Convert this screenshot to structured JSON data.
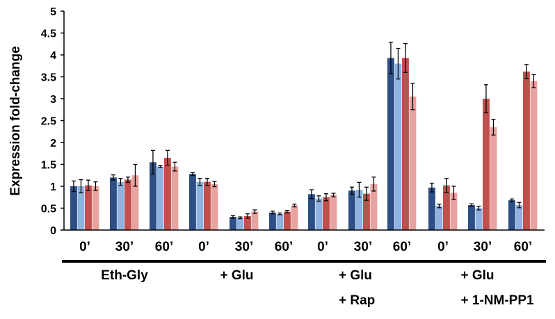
{
  "chart_data": {
    "type": "bar",
    "title": "",
    "xlabel": "",
    "ylabel": "Expression fold-change",
    "ylim": [
      0,
      5
    ],
    "yticks": [
      0,
      0.5,
      1,
      1.5,
      2,
      2.5,
      3,
      3.5,
      4,
      4.5,
      5
    ],
    "grid": false,
    "legend": "none",
    "series_colors": [
      "#2E4F85",
      "#8FB3E0",
      "#C0504D",
      "#E6A3A0"
    ],
    "groups": [
      {
        "label_lines": [
          "Eth-Gly"
        ],
        "timepoints": [
          {
            "label": "0’",
            "values": [
              1.0,
              1.0,
              1.02,
              1.0
            ],
            "errors": [
              0.12,
              0.15,
              0.12,
              0.1
            ]
          },
          {
            "label": "30’",
            "values": [
              1.2,
              1.1,
              1.15,
              1.25
            ],
            "errors": [
              0.06,
              0.08,
              0.06,
              0.25
            ]
          },
          {
            "label": "60’",
            "values": [
              1.55,
              1.45,
              1.65,
              1.45
            ],
            "errors": [
              0.27,
              0.02,
              0.17,
              0.1
            ]
          }
        ]
      },
      {
        "label_lines": [
          "+ Glu"
        ],
        "timepoints": [
          {
            "label": "0’",
            "values": [
              1.28,
              1.1,
              1.1,
              1.05
            ],
            "errors": [
              0.03,
              0.08,
              0.08,
              0.06
            ]
          },
          {
            "label": "30’",
            "values": [
              0.3,
              0.28,
              0.32,
              0.42
            ],
            "errors": [
              0.03,
              0.02,
              0.05,
              0.04
            ]
          },
          {
            "label": "60’",
            "values": [
              0.4,
              0.37,
              0.42,
              0.56
            ],
            "errors": [
              0.03,
              0.02,
              0.03,
              0.03
            ]
          }
        ]
      },
      {
        "label_lines": [
          "+ Glu",
          "+ Rap"
        ],
        "timepoints": [
          {
            "label": "0’",
            "values": [
              0.82,
              0.72,
              0.75,
              0.8
            ],
            "errors": [
              0.1,
              0.06,
              0.08,
              0.04
            ]
          },
          {
            "label": "30’",
            "values": [
              0.9,
              0.92,
              0.83,
              1.05
            ],
            "errors": [
              0.08,
              0.17,
              0.15,
              0.16
            ]
          },
          {
            "label": "60’",
            "values": [
              3.93,
              3.8,
              3.93,
              3.05
            ],
            "errors": [
              0.36,
              0.35,
              0.33,
              0.3
            ]
          }
        ]
      },
      {
        "label_lines": [
          "+ Glu",
          "+ 1-NM-PP1"
        ],
        "timepoints": [
          {
            "label": "0’",
            "values": [
              0.97,
              0.55,
              1.02,
              0.85
            ],
            "errors": [
              0.1,
              0.04,
              0.16,
              0.15
            ]
          },
          {
            "label": "30’",
            "values": [
              0.57,
              0.5,
              3.0,
              2.35
            ],
            "errors": [
              0.03,
              0.04,
              0.32,
              0.18
            ]
          },
          {
            "label": "60’",
            "values": [
              0.68,
              0.57,
              3.62,
              3.4
            ],
            "errors": [
              0.03,
              0.06,
              0.16,
              0.15
            ]
          }
        ]
      }
    ]
  }
}
